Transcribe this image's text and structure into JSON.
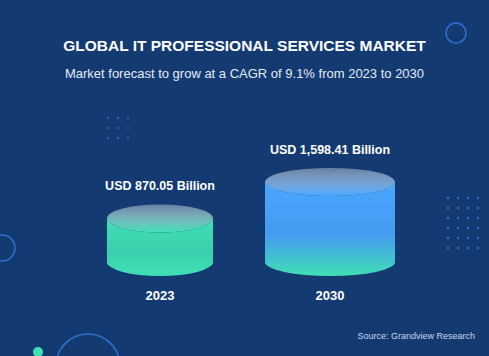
{
  "chart_data": {
    "type": "bar",
    "title": "GLOBAL IT PROFESSIONAL SERVICES MARKET",
    "subtitle": "Market forecast to grow at a CAGR of 9.1% from 2023 to 2030",
    "categories": [
      "2023",
      "2030"
    ],
    "values": [
      870.05,
      1598.41
    ],
    "value_labels": [
      "USD 870.05 Billion",
      "USD 1,598.41 Billion"
    ],
    "data_labels": true,
    "tick_labels": "x",
    "colors": [
      "#3fe0b4",
      "#4aa6ff"
    ],
    "source": "Source: Grandview Research"
  }
}
